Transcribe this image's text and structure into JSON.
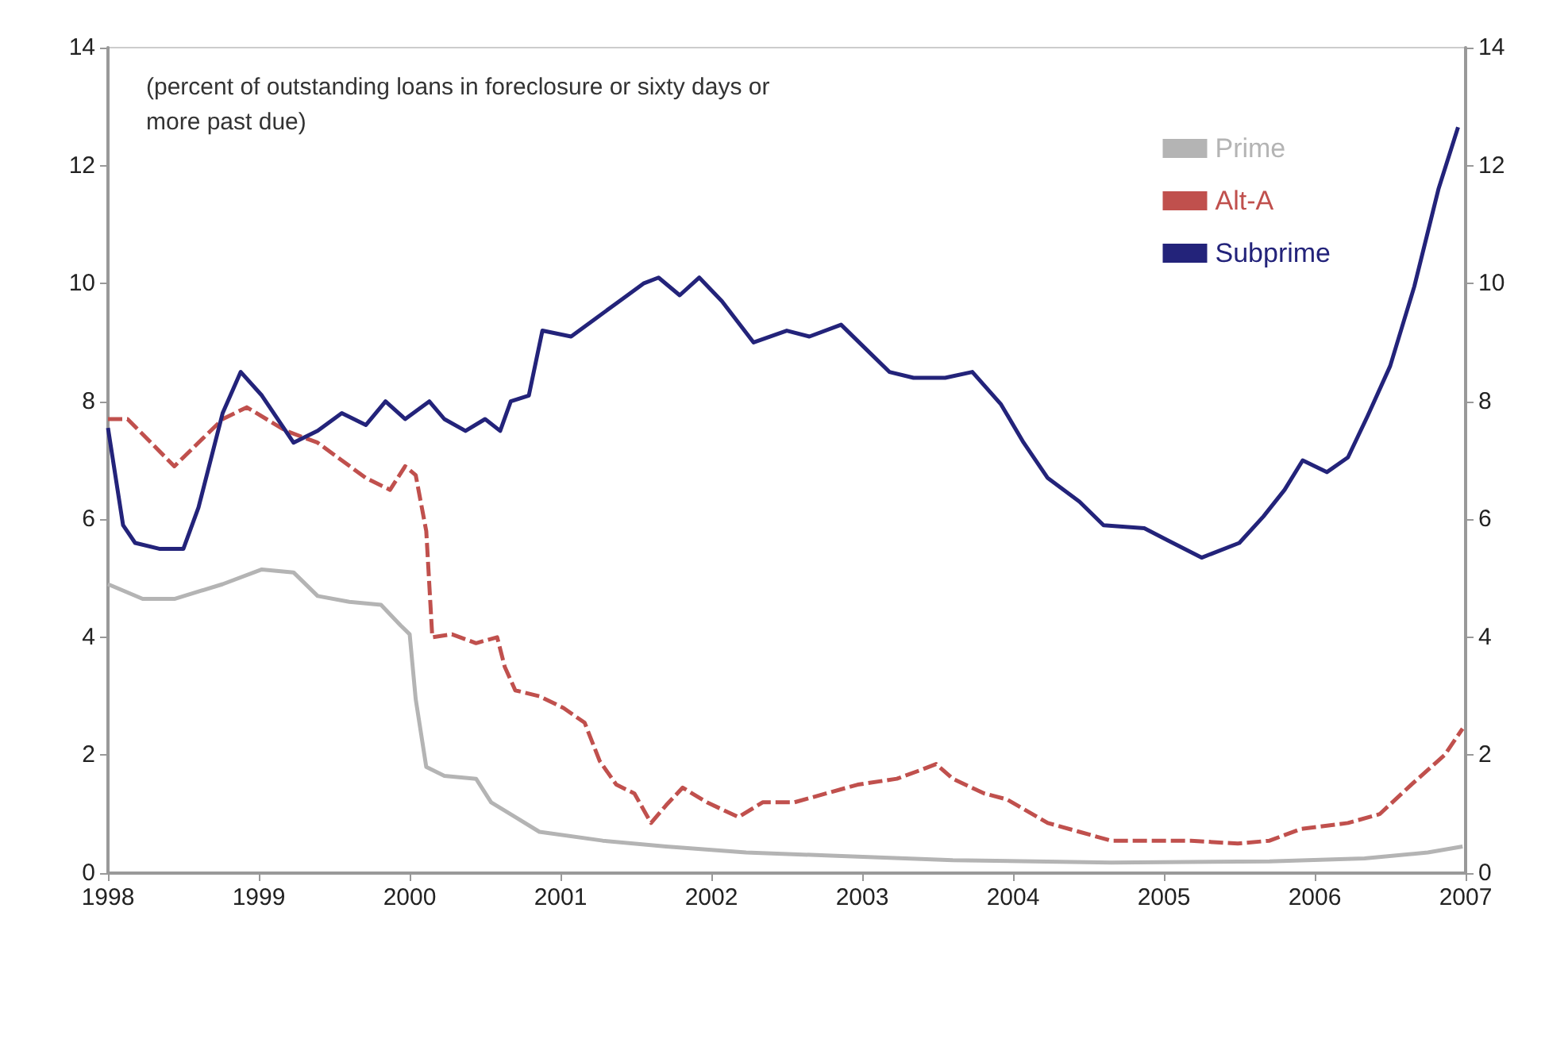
{
  "chart_data": {
    "type": "line",
    "annotations": [
      "(percent of outstanding loans in foreclosure or sixty days or more past due)"
    ],
    "xlim": [
      1998,
      2007
    ],
    "xticks": [
      1998,
      1999,
      2000,
      2001,
      2002,
      2003,
      2004,
      2005,
      2006,
      2007
    ],
    "ylim": [
      0,
      14
    ],
    "yticks": [
      0,
      2,
      4,
      6,
      8,
      10,
      12,
      14
    ],
    "y2lim": [
      0,
      14
    ],
    "y2ticks": [
      0,
      2,
      4,
      6,
      8,
      10,
      12,
      14
    ],
    "grid": false,
    "legend": "top right",
    "marker": "none",
    "series": [
      {
        "name": "Prime",
        "color": "#b4b4b4",
        "line_style": "solid",
        "x": [
          1998.0,
          1998.23,
          1998.44,
          1998.76,
          1999.02,
          1999.23,
          1999.39,
          1999.6,
          1999.81,
          1999.94,
          2000.0,
          2000.04,
          2000.11,
          2000.23,
          2000.44,
          2000.54,
          2000.7,
          2000.86,
          2001.28,
          2001.7,
          2002.23,
          2002.76,
          2003.6,
          2004.65,
          2005.7,
          2006.33,
          2006.75,
          2006.98
        ],
        "values": [
          4.9,
          4.65,
          4.65,
          4.9,
          5.15,
          5.1,
          4.7,
          4.6,
          4.55,
          4.2,
          4.05,
          2.95,
          1.8,
          1.65,
          1.6,
          1.2,
          0.95,
          0.7,
          0.55,
          0.45,
          0.35,
          0.3,
          0.22,
          0.18,
          0.2,
          0.25,
          0.35,
          0.45
        ]
      },
      {
        "name": "Alt-A",
        "color": "#c0504d",
        "line_style": "dashed",
        "x": [
          1998.0,
          1998.13,
          1998.44,
          1998.76,
          1998.92,
          1999.18,
          1999.39,
          1999.55,
          1999.71,
          1999.87,
          1999.97,
          2000.04,
          2000.11,
          2000.15,
          2000.28,
          2000.44,
          2000.58,
          2000.63,
          2000.7,
          2000.86,
          2001.02,
          2001.16,
          2001.26,
          2001.37,
          2001.49,
          2001.6,
          2001.7,
          2001.81,
          2001.97,
          2002.18,
          2002.34,
          2002.55,
          2002.76,
          2002.97,
          2003.23,
          2003.39,
          2003.49,
          2003.6,
          2003.81,
          2003.96,
          2004.23,
          2004.44,
          2004.65,
          2004.86,
          2005.18,
          2005.49,
          2005.7,
          2005.91,
          2006.22,
          2006.43,
          2006.64,
          2006.86,
          2006.98
        ],
        "values": [
          7.7,
          7.7,
          6.9,
          7.7,
          7.9,
          7.5,
          7.3,
          7.0,
          6.7,
          6.5,
          6.9,
          6.75,
          5.8,
          4.0,
          4.05,
          3.9,
          4.0,
          3.5,
          3.1,
          3.0,
          2.8,
          2.55,
          1.9,
          1.5,
          1.35,
          0.85,
          1.15,
          1.45,
          1.2,
          0.95,
          1.2,
          1.2,
          1.35,
          1.5,
          1.6,
          1.75,
          1.85,
          1.6,
          1.35,
          1.25,
          0.85,
          0.7,
          0.55,
          0.55,
          0.55,
          0.5,
          0.55,
          0.75,
          0.85,
          1.0,
          1.5,
          2.0,
          2.45
        ]
      },
      {
        "name": "Subprime",
        "color": "#23237a",
        "line_style": "solid",
        "x": [
          1998.0,
          1998.1,
          1998.18,
          1998.34,
          1998.5,
          1998.6,
          1998.76,
          1998.88,
          1999.02,
          1999.23,
          1999.39,
          1999.55,
          1999.71,
          1999.84,
          1999.97,
          2000.13,
          2000.23,
          2000.37,
          2000.5,
          2000.6,
          2000.67,
          2000.79,
          2000.88,
          2001.07,
          2001.23,
          2001.39,
          2001.55,
          2001.65,
          2001.79,
          2001.92,
          2002.07,
          2002.28,
          2002.5,
          2002.65,
          2002.86,
          2003.02,
          2003.18,
          2003.34,
          2003.55,
          2003.73,
          2003.92,
          2004.07,
          2004.23,
          2004.44,
          2004.6,
          2004.87,
          2005.02,
          2005.25,
          2005.5,
          2005.66,
          2005.8,
          2005.92,
          2006.08,
          2006.22,
          2006.35,
          2006.5,
          2006.66,
          2006.82,
          2006.95
        ],
        "values": [
          7.55,
          5.9,
          5.6,
          5.5,
          5.5,
          6.2,
          7.8,
          8.5,
          8.1,
          7.3,
          7.5,
          7.8,
          7.6,
          8.0,
          7.7,
          8.0,
          7.7,
          7.5,
          7.7,
          7.5,
          8.0,
          8.1,
          9.2,
          9.1,
          9.4,
          9.7,
          10.0,
          10.1,
          9.8,
          10.1,
          9.7,
          9.0,
          9.2,
          9.1,
          9.3,
          8.9,
          8.5,
          8.4,
          8.4,
          8.5,
          7.95,
          7.3,
          6.7,
          6.3,
          5.9,
          5.85,
          5.65,
          5.35,
          5.6,
          6.05,
          6.5,
          7.0,
          6.8,
          7.05,
          7.75,
          8.6,
          9.95,
          11.6,
          12.65
        ]
      }
    ]
  }
}
